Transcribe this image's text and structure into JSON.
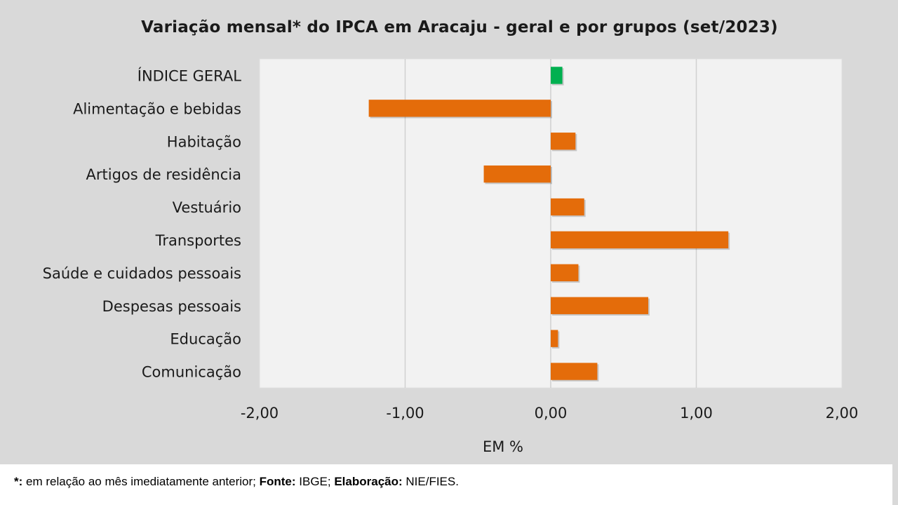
{
  "chart_data": {
    "type": "bar",
    "orientation": "horizontal",
    "title": "Variação  mensal*  do  IPCA  em  Aracaju   - geral  e  por  grupos  (set/2023)",
    "xlabel": "EM %",
    "ylabel": "",
    "xlim": [
      -2.0,
      2.0
    ],
    "xticks": [
      "-2,00",
      "-1,00",
      "0,00",
      "1,00",
      "2,00"
    ],
    "grid": "vertical",
    "categories": [
      "ÍNDICE GERAL",
      "Alimentação e bebidas",
      "Habitação",
      "Artigos de residência",
      "Vestuário",
      "Transportes",
      "Saúde e cuidados pessoais",
      "Despesas pessoais",
      "Educação",
      "Comunicação"
    ],
    "values": [
      0.08,
      -1.25,
      0.17,
      -0.46,
      0.23,
      1.22,
      0.19,
      0.67,
      0.05,
      0.32
    ],
    "colors": [
      "#00b050",
      "#e46c0a",
      "#e46c0a",
      "#e46c0a",
      "#e46c0a",
      "#e46c0a",
      "#e46c0a",
      "#e46c0a",
      "#e46c0a",
      "#e46c0a"
    ]
  },
  "footer": {
    "note_key": "*:",
    "note_text": " em relação ao mês imediatamente  anterior; ",
    "source_key": "Fonte:",
    "source_text": " IBGE; ",
    "elaboration_key": "Elaboração:",
    "elaboration_text": " NIE/FIES."
  }
}
